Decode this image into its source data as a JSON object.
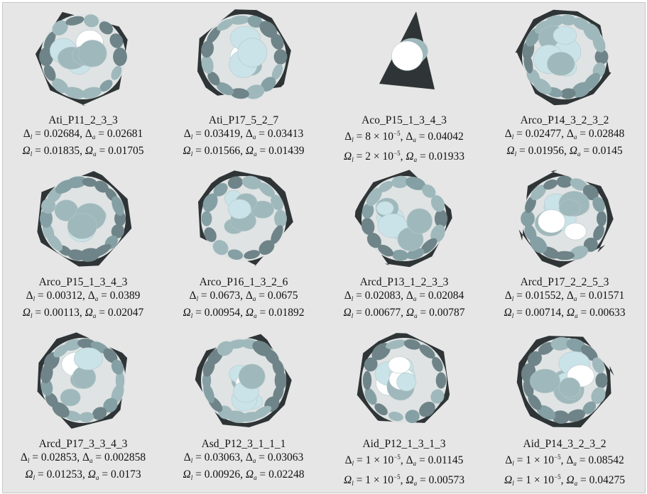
{
  "panels": [
    {
      "name": "Ati_P11_2_3_3",
      "dl": "0.02684",
      "da": "0.02681",
      "ol": "0.01835",
      "oa": "0.01705"
    },
    {
      "name": "Ati_P17_5_2_7",
      "dl": "0.03419",
      "da": "0.03413",
      "ol": "0.01566",
      "oa": "0.01439"
    },
    {
      "name": "Aco_P15_1_3_4_3",
      "dl": "8 × 10",
      "dl_exp": "−5",
      "da": "0.04042",
      "ol": "2 × 10",
      "ol_exp": "−5",
      "oa": "0.01933"
    },
    {
      "name": "Arco_P14_3_2_3_2",
      "dl": "0.02477",
      "da": "0.02848",
      "ol": "0.01956",
      "oa": "0.0145"
    },
    {
      "name": "Arco_P15_1_3_4_3",
      "dl": "0.00312",
      "da": "0.0389",
      "ol": "0.00113",
      "oa": "0.02047"
    },
    {
      "name": "Arco_P16_1_3_2_6",
      "dl": "0.0673",
      "da": "0.0675",
      "ol": "0.00954",
      "oa": "0.01892"
    },
    {
      "name": "Arcd_P13_1_2_3_3",
      "dl": "0.02083",
      "da": "0.02084",
      "ol": "0.00677",
      "oa": "0.00787"
    },
    {
      "name": "Arcd_P17_2_2_5_3",
      "dl": "0.01552",
      "da": "0.01571",
      "ol": "0.00714",
      "oa": "0.00633"
    },
    {
      "name": "Arcd_P17_3_3_4_3",
      "dl": "0.02853",
      "da": "0.002858",
      "ol": "0.01253",
      "oa": "0.0173"
    },
    {
      "name": "Asd_P12_3_1_1_1",
      "dl": "0.03063",
      "da": "0.03063",
      "ol": "0.00926",
      "oa": "0.02248"
    },
    {
      "name": "Aid_P12_1_3_1_3",
      "dl": "1 × 10",
      "dl_exp": "−5",
      "da": "0.01145",
      "ol": "1 × 10",
      "ol_exp": "−5",
      "oa": "0.00573"
    },
    {
      "name": "Aid_P14_3_2_3_2",
      "dl": "1 × 10",
      "dl_exp": "−5",
      "da": "0.08542",
      "ol": "1 × 10",
      "ol_exp": "−5",
      "oa": "0.04275"
    }
  ],
  "symbols": {
    "delta": "Δ",
    "omega": "Ω",
    "sub_l": "l",
    "sub_a": "a"
  },
  "colors": {
    "background": "#e6e6e6",
    "ellipse_light": "#c9e3e8",
    "ellipse_mid": "#9fb8bc",
    "ellipse_dark": "#6f8488",
    "highlight": "#ffffff",
    "frame_dark": "#2f3536"
  }
}
